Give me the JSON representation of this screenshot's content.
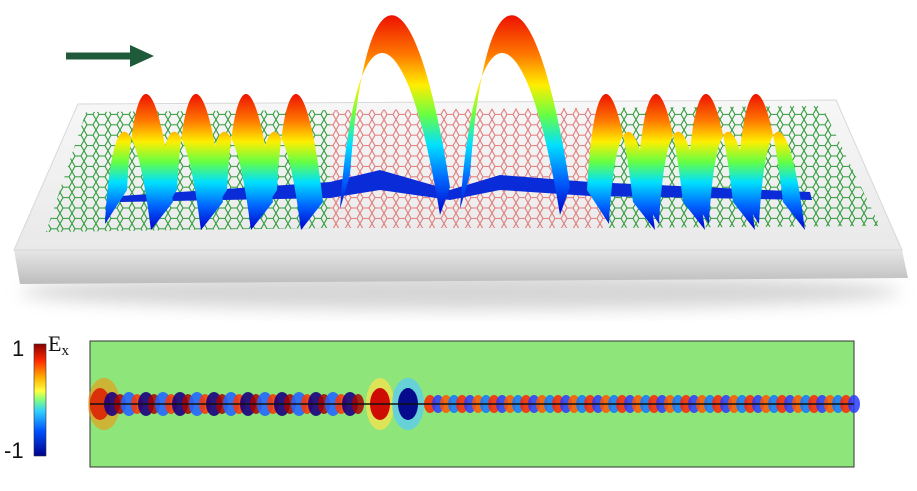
{
  "figure": {
    "arrow_color": "#1f5a3a",
    "sheet_colors": {
      "graphene_a": "#2e9a3a",
      "graphene_b": "#e07b7b",
      "substrate_top": "#f2f2f2",
      "substrate_side": "#cfcfcf"
    }
  },
  "colorbar": {
    "max_label": "1",
    "min_label": "-1",
    "field_symbol": "E",
    "field_subscript": "x",
    "colors": [
      "#8b0000",
      "#ff2a00",
      "#ffb000",
      "#ffff40",
      "#80ff80",
      "#30d0ff",
      "#0050ff",
      "#00008b"
    ]
  },
  "field_map": {
    "background": "#8ee67a",
    "axis_line_color": "#111111"
  }
}
